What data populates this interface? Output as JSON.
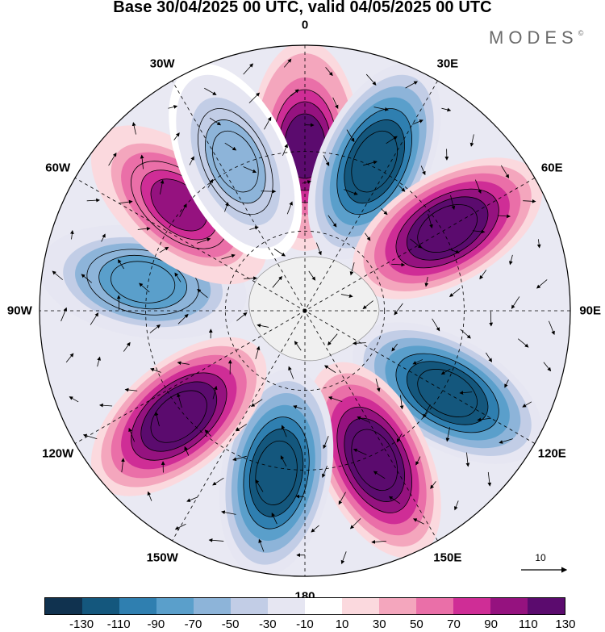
{
  "title": "Base 30/04/2025 00 UTC, valid 04/05/2025 00 UTC",
  "brand": {
    "name": "MODES",
    "mark": "©"
  },
  "longitude_labels": [
    "0",
    "30E",
    "60E",
    "90E",
    "120E",
    "150E",
    "180",
    "150W",
    "120W",
    "90W",
    "60W",
    "30W"
  ],
  "vector_reference": {
    "label": "10"
  },
  "colorbar": {
    "colors": [
      "#10324f",
      "#14577d",
      "#2f7fb0",
      "#5a9fcb",
      "#8db4d9",
      "#c2cde6",
      "#e6e6f2",
      "#ffffff",
      "#fbd9de",
      "#f4a6bd",
      "#ea6fa8",
      "#cf2d96",
      "#95127f",
      "#5b0b6e"
    ],
    "tick_labels": [
      "-130",
      "-110",
      "-90",
      "-70",
      "-50",
      "-30",
      "-10",
      "10",
      "30",
      "50",
      "70",
      "90",
      "110",
      "130"
    ]
  },
  "chart_data": {
    "type": "map",
    "projection": "south-polar-stereographic",
    "field": "contoured anomaly with wind vectors",
    "levels": [
      -130,
      -110,
      -90,
      -70,
      -50,
      -30,
      -10,
      10,
      30,
      50,
      70,
      90,
      110,
      130
    ],
    "anomaly_centers": [
      {
        "lon": 0,
        "sign": "positive",
        "peak": 110
      },
      {
        "lon": 25,
        "sign": "negative",
        "peak": -130
      },
      {
        "lon": 60,
        "sign": "positive",
        "peak": 130
      },
      {
        "lon": 120,
        "sign": "negative",
        "peak": -130
      },
      {
        "lon": 155,
        "sign": "positive",
        "peak": 130
      },
      {
        "lon": 190,
        "sign": "negative",
        "peak": -130
      },
      {
        "lon": 230,
        "sign": "positive",
        "peak": 130
      },
      {
        "lon": 280,
        "sign": "negative",
        "peak": -90
      },
      {
        "lon": 310,
        "sign": "positive",
        "peak": 90
      },
      {
        "lon": 335,
        "sign": "negative",
        "peak": -70
      }
    ]
  }
}
